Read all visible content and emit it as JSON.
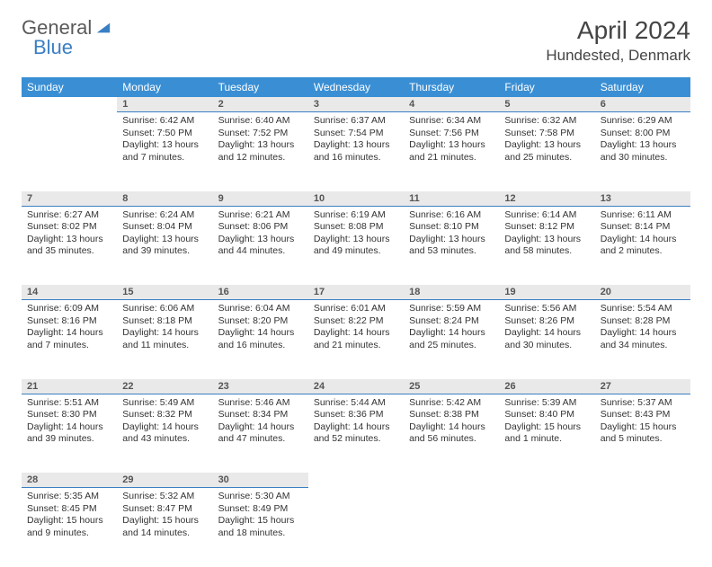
{
  "brand": {
    "part1": "General",
    "part2": "Blue"
  },
  "title": "April 2024",
  "location": "Hundested, Denmark",
  "colors": {
    "header_bg": "#3a8fd4",
    "header_text": "#ffffff",
    "daynum_bg": "#e9e9e9",
    "daynum_border": "#3a7fc4",
    "brand_gray": "#5a5a5a",
    "brand_blue": "#3a7fc4",
    "text": "#333333",
    "page_bg": "#ffffff"
  },
  "fonts": {
    "title_size_pt": 21,
    "location_size_pt": 13,
    "header_size_pt": 9,
    "body_size_pt": 8
  },
  "day_headers": [
    "Sunday",
    "Monday",
    "Tuesday",
    "Wednesday",
    "Thursday",
    "Friday",
    "Saturday"
  ],
  "weeks": [
    {
      "nums": [
        "",
        "1",
        "2",
        "3",
        "4",
        "5",
        "6"
      ],
      "cells": [
        null,
        {
          "sunrise": "Sunrise: 6:42 AM",
          "sunset": "Sunset: 7:50 PM",
          "d1": "Daylight: 13 hours",
          "d2": "and 7 minutes."
        },
        {
          "sunrise": "Sunrise: 6:40 AM",
          "sunset": "Sunset: 7:52 PM",
          "d1": "Daylight: 13 hours",
          "d2": "and 12 minutes."
        },
        {
          "sunrise": "Sunrise: 6:37 AM",
          "sunset": "Sunset: 7:54 PM",
          "d1": "Daylight: 13 hours",
          "d2": "and 16 minutes."
        },
        {
          "sunrise": "Sunrise: 6:34 AM",
          "sunset": "Sunset: 7:56 PM",
          "d1": "Daylight: 13 hours",
          "d2": "and 21 minutes."
        },
        {
          "sunrise": "Sunrise: 6:32 AM",
          "sunset": "Sunset: 7:58 PM",
          "d1": "Daylight: 13 hours",
          "d2": "and 25 minutes."
        },
        {
          "sunrise": "Sunrise: 6:29 AM",
          "sunset": "Sunset: 8:00 PM",
          "d1": "Daylight: 13 hours",
          "d2": "and 30 minutes."
        }
      ]
    },
    {
      "nums": [
        "7",
        "8",
        "9",
        "10",
        "11",
        "12",
        "13"
      ],
      "cells": [
        {
          "sunrise": "Sunrise: 6:27 AM",
          "sunset": "Sunset: 8:02 PM",
          "d1": "Daylight: 13 hours",
          "d2": "and 35 minutes."
        },
        {
          "sunrise": "Sunrise: 6:24 AM",
          "sunset": "Sunset: 8:04 PM",
          "d1": "Daylight: 13 hours",
          "d2": "and 39 minutes."
        },
        {
          "sunrise": "Sunrise: 6:21 AM",
          "sunset": "Sunset: 8:06 PM",
          "d1": "Daylight: 13 hours",
          "d2": "and 44 minutes."
        },
        {
          "sunrise": "Sunrise: 6:19 AM",
          "sunset": "Sunset: 8:08 PM",
          "d1": "Daylight: 13 hours",
          "d2": "and 49 minutes."
        },
        {
          "sunrise": "Sunrise: 6:16 AM",
          "sunset": "Sunset: 8:10 PM",
          "d1": "Daylight: 13 hours",
          "d2": "and 53 minutes."
        },
        {
          "sunrise": "Sunrise: 6:14 AM",
          "sunset": "Sunset: 8:12 PM",
          "d1": "Daylight: 13 hours",
          "d2": "and 58 minutes."
        },
        {
          "sunrise": "Sunrise: 6:11 AM",
          "sunset": "Sunset: 8:14 PM",
          "d1": "Daylight: 14 hours",
          "d2": "and 2 minutes."
        }
      ]
    },
    {
      "nums": [
        "14",
        "15",
        "16",
        "17",
        "18",
        "19",
        "20"
      ],
      "cells": [
        {
          "sunrise": "Sunrise: 6:09 AM",
          "sunset": "Sunset: 8:16 PM",
          "d1": "Daylight: 14 hours",
          "d2": "and 7 minutes."
        },
        {
          "sunrise": "Sunrise: 6:06 AM",
          "sunset": "Sunset: 8:18 PM",
          "d1": "Daylight: 14 hours",
          "d2": "and 11 minutes."
        },
        {
          "sunrise": "Sunrise: 6:04 AM",
          "sunset": "Sunset: 8:20 PM",
          "d1": "Daylight: 14 hours",
          "d2": "and 16 minutes."
        },
        {
          "sunrise": "Sunrise: 6:01 AM",
          "sunset": "Sunset: 8:22 PM",
          "d1": "Daylight: 14 hours",
          "d2": "and 21 minutes."
        },
        {
          "sunrise": "Sunrise: 5:59 AM",
          "sunset": "Sunset: 8:24 PM",
          "d1": "Daylight: 14 hours",
          "d2": "and 25 minutes."
        },
        {
          "sunrise": "Sunrise: 5:56 AM",
          "sunset": "Sunset: 8:26 PM",
          "d1": "Daylight: 14 hours",
          "d2": "and 30 minutes."
        },
        {
          "sunrise": "Sunrise: 5:54 AM",
          "sunset": "Sunset: 8:28 PM",
          "d1": "Daylight: 14 hours",
          "d2": "and 34 minutes."
        }
      ]
    },
    {
      "nums": [
        "21",
        "22",
        "23",
        "24",
        "25",
        "26",
        "27"
      ],
      "cells": [
        {
          "sunrise": "Sunrise: 5:51 AM",
          "sunset": "Sunset: 8:30 PM",
          "d1": "Daylight: 14 hours",
          "d2": "and 39 minutes."
        },
        {
          "sunrise": "Sunrise: 5:49 AM",
          "sunset": "Sunset: 8:32 PM",
          "d1": "Daylight: 14 hours",
          "d2": "and 43 minutes."
        },
        {
          "sunrise": "Sunrise: 5:46 AM",
          "sunset": "Sunset: 8:34 PM",
          "d1": "Daylight: 14 hours",
          "d2": "and 47 minutes."
        },
        {
          "sunrise": "Sunrise: 5:44 AM",
          "sunset": "Sunset: 8:36 PM",
          "d1": "Daylight: 14 hours",
          "d2": "and 52 minutes."
        },
        {
          "sunrise": "Sunrise: 5:42 AM",
          "sunset": "Sunset: 8:38 PM",
          "d1": "Daylight: 14 hours",
          "d2": "and 56 minutes."
        },
        {
          "sunrise": "Sunrise: 5:39 AM",
          "sunset": "Sunset: 8:40 PM",
          "d1": "Daylight: 15 hours",
          "d2": "and 1 minute."
        },
        {
          "sunrise": "Sunrise: 5:37 AM",
          "sunset": "Sunset: 8:43 PM",
          "d1": "Daylight: 15 hours",
          "d2": "and 5 minutes."
        }
      ]
    },
    {
      "nums": [
        "28",
        "29",
        "30",
        "",
        "",
        "",
        ""
      ],
      "cells": [
        {
          "sunrise": "Sunrise: 5:35 AM",
          "sunset": "Sunset: 8:45 PM",
          "d1": "Daylight: 15 hours",
          "d2": "and 9 minutes."
        },
        {
          "sunrise": "Sunrise: 5:32 AM",
          "sunset": "Sunset: 8:47 PM",
          "d1": "Daylight: 15 hours",
          "d2": "and 14 minutes."
        },
        {
          "sunrise": "Sunrise: 5:30 AM",
          "sunset": "Sunset: 8:49 PM",
          "d1": "Daylight: 15 hours",
          "d2": "and 18 minutes."
        },
        null,
        null,
        null,
        null
      ]
    }
  ]
}
